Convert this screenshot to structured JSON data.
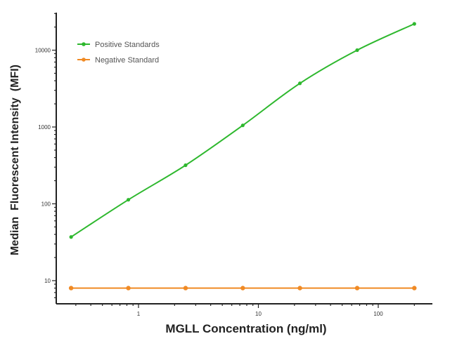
{
  "chart_data": {
    "type": "line",
    "title": "",
    "xlabel": "MGLL Concentration (ng/ml)",
    "ylabel": "Median  Fluorescent Intensity  (MFI)",
    "x_scale": "log",
    "y_scale": "log",
    "xlim": [
      0.2,
      300
    ],
    "ylim": [
      5,
      31000
    ],
    "x_ticks": [
      1,
      10,
      100
    ],
    "x_tick_labels": [
      "1",
      "10",
      "100"
    ],
    "y_ticks": [
      10,
      100,
      1000,
      10000
    ],
    "y_tick_labels": [
      "10",
      "100",
      "1000",
      "10000"
    ],
    "grid": false,
    "legend_position": "top-left",
    "series": [
      {
        "name": "Positive Standards",
        "color": "#2eb82e",
        "x": [
          0.274,
          0.823,
          2.47,
          7.41,
          22.2,
          66.7,
          200
        ],
        "y": [
          37,
          113,
          318,
          1050,
          3700,
          10000,
          22000
        ]
      },
      {
        "name": "Negative Standard",
        "color": "#f08a24",
        "x": [
          0.274,
          0.823,
          2.47,
          7.41,
          22.2,
          66.7,
          200
        ],
        "y": [
          8,
          8,
          8,
          8,
          8,
          8,
          8
        ]
      }
    ]
  }
}
